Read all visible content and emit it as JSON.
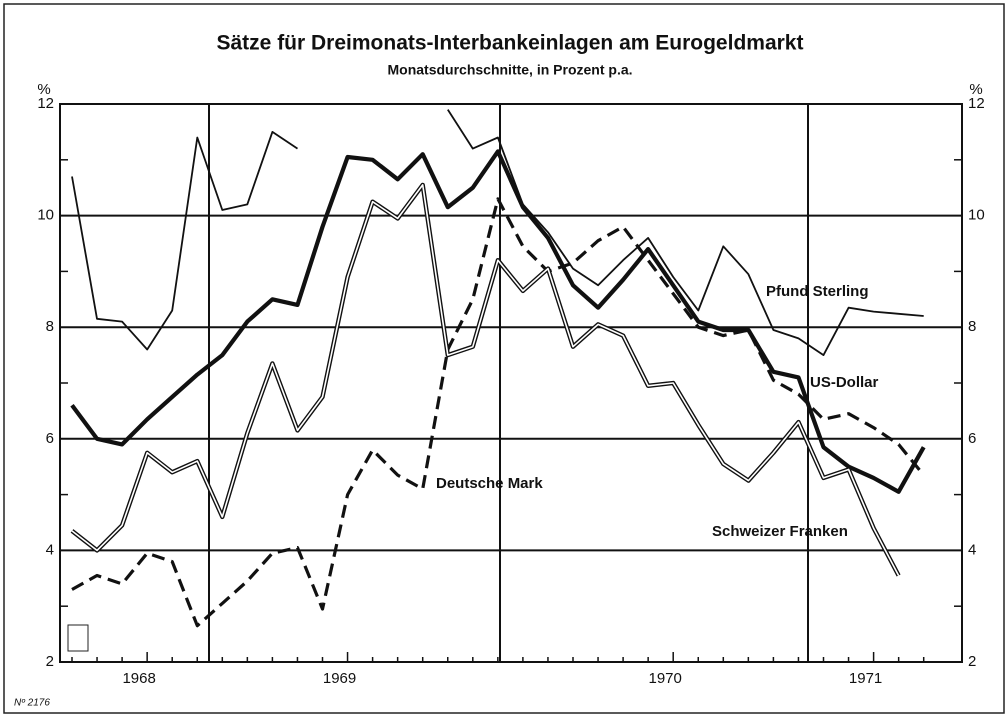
{
  "chart_data": {
    "type": "line",
    "title": "Sätze für Dreimonats-Interbankeinlagen am Eurogeldmarkt",
    "subtitle": "Monatsdurchschnitte, in Prozent p.a.",
    "y_label": "%",
    "footnote": "Nº 2176",
    "categories": [
      null,
      null,
      null,
      "1968",
      null,
      null,
      null,
      null,
      null,
      null,
      null,
      "1969",
      null,
      null,
      null,
      null,
      null,
      null,
      null,
      null,
      null,
      null,
      null,
      null,
      "1970",
      null,
      null,
      null,
      null,
      null,
      null,
      null,
      "1971",
      null,
      null
    ],
    "ylim": [
      2,
      12
    ],
    "yticks": [
      2,
      4,
      6,
      8,
      10,
      12
    ],
    "grid": true,
    "series": [
      {
        "name": "Pfund Sterling",
        "color": "#111111",
        "style": "solid",
        "values": [
          10.7,
          8.15,
          8.1,
          7.6,
          8.3,
          11.4,
          10.1,
          10.2,
          11.5,
          11.2,
          null,
          null,
          null,
          null,
          null,
          11.9,
          11.2,
          11.4,
          10.2,
          9.7,
          9.05,
          8.75,
          9.2,
          9.6,
          8.9,
          8.3,
          9.45,
          8.95,
          7.95,
          7.8,
          7.5,
          8.35,
          8.28,
          8.24,
          8.2
        ]
      },
      {
        "name": "US-Dollar",
        "color": "#111111",
        "style": "bold",
        "values": [
          6.6,
          6.0,
          5.9,
          6.35,
          6.75,
          7.15,
          7.5,
          8.1,
          8.5,
          8.4,
          9.8,
          11.05,
          11.0,
          10.65,
          11.1,
          10.15,
          10.5,
          11.15,
          10.15,
          9.6,
          8.75,
          8.35,
          8.85,
          9.4,
          8.75,
          8.1,
          7.95,
          7.95,
          7.2,
          7.1,
          5.85,
          5.5,
          5.3,
          5.05,
          5.85
        ]
      },
      {
        "name": "Deutsche Mark",
        "color": "#111111",
        "style": "dashed",
        "values": [
          3.3,
          3.55,
          3.4,
          3.95,
          3.8,
          2.65,
          3.05,
          3.45,
          3.95,
          4.05,
          2.95,
          5.0,
          5.8,
          5.35,
          5.1,
          7.6,
          8.5,
          10.3,
          9.45,
          9.0,
          9.15,
          9.55,
          9.8,
          9.2,
          8.6,
          8.0,
          7.85,
          7.95,
          7.05,
          6.8,
          6.35,
          6.45,
          6.2,
          5.9,
          5.35
        ]
      },
      {
        "name": "Schweizer Franken",
        "color": "#111111",
        "style": "double",
        "values": [
          4.35,
          4.0,
          4.45,
          5.75,
          5.4,
          5.6,
          4.6,
          6.1,
          7.35,
          6.15,
          6.75,
          8.9,
          10.25,
          9.95,
          10.55,
          7.5,
          7.65,
          9.2,
          8.65,
          9.05,
          7.65,
          8.05,
          7.85,
          6.95,
          7.0,
          6.25,
          5.55,
          5.25,
          5.75,
          6.3,
          5.3,
          5.45,
          4.4,
          3.55,
          null
        ]
      }
    ]
  }
}
